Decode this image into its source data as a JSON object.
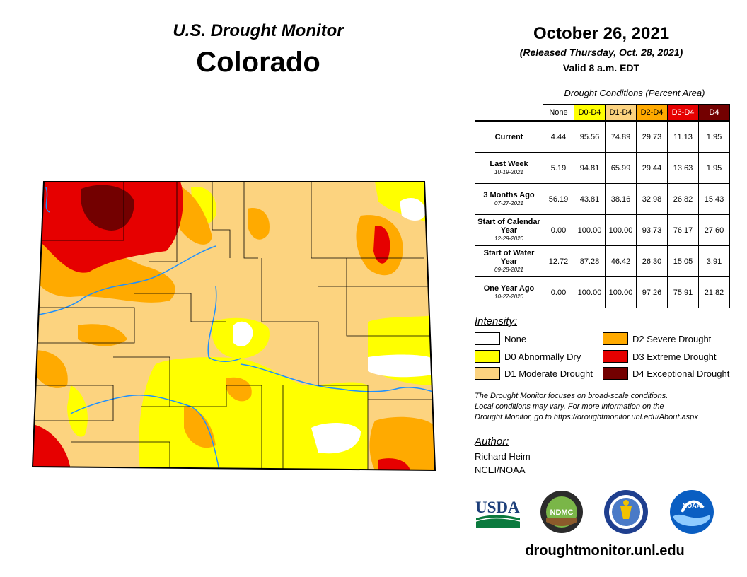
{
  "header": {
    "title": "U.S. Drought Monitor",
    "state": "Colorado",
    "date": "October 26, 2021",
    "released": "(Released Thursday, Oct. 28, 2021)",
    "valid": "Valid 8 a.m. EDT"
  },
  "conditions": {
    "caption": "Drought Conditions (Percent Area)",
    "columns": [
      {
        "label": "None",
        "color": "#ffffff",
        "text": "#000000"
      },
      {
        "label": "D0-D4",
        "color": "#ffff00",
        "text": "#000000"
      },
      {
        "label": "D1-D4",
        "color": "#fcd37f",
        "text": "#000000"
      },
      {
        "label": "D2-D4",
        "color": "#ffaa00",
        "text": "#000000"
      },
      {
        "label": "D3-D4",
        "color": "#e60000",
        "text": "#ffffff"
      },
      {
        "label": "D4",
        "color": "#730000",
        "text": "#ffffff"
      }
    ],
    "rows": [
      {
        "label": "Current",
        "date": "",
        "values": [
          "4.44",
          "95.56",
          "74.89",
          "29.73",
          "11.13",
          "1.95"
        ]
      },
      {
        "label": "Last Week",
        "date": "10-19-2021",
        "values": [
          "5.19",
          "94.81",
          "65.99",
          "29.44",
          "13.63",
          "1.95"
        ]
      },
      {
        "label": "3 Months Ago",
        "date": "07-27-2021",
        "values": [
          "56.19",
          "43.81",
          "38.16",
          "32.98",
          "26.82",
          "15.43"
        ]
      },
      {
        "label": "Start of Calendar Year",
        "date": "12-29-2020",
        "values": [
          "0.00",
          "100.00",
          "100.00",
          "93.73",
          "76.17",
          "27.60"
        ]
      },
      {
        "label": "Start of Water Year",
        "date": "09-28-2021",
        "values": [
          "12.72",
          "87.28",
          "46.42",
          "26.30",
          "15.05",
          "3.91"
        ]
      },
      {
        "label": "One Year Ago",
        "date": "10-27-2020",
        "values": [
          "0.00",
          "100.00",
          "100.00",
          "97.26",
          "75.91",
          "21.82"
        ]
      }
    ]
  },
  "intensity": {
    "heading": "Intensity:",
    "items": [
      {
        "label": "None",
        "color": "#ffffff"
      },
      {
        "label": "D0 Abnormally Dry",
        "color": "#ffff00"
      },
      {
        "label": "D1 Moderate Drought",
        "color": "#fcd37f"
      },
      {
        "label": "D2 Severe Drought",
        "color": "#ffaa00"
      },
      {
        "label": "D3 Extreme Drought",
        "color": "#e60000"
      },
      {
        "label": "D4 Exceptional Drought",
        "color": "#730000"
      }
    ]
  },
  "note": {
    "line1": "The Drought Monitor focuses on broad-scale conditions.",
    "line2": "Local conditions may vary. For more information on the",
    "line3": "Drought Monitor, go to https://droughtmonitor.unl.edu/About.aspx"
  },
  "author": {
    "heading": "Author:",
    "name": "Richard Heim",
    "org": "NCEI/NOAA"
  },
  "logos": {
    "usda": "USDA",
    "ndmc": "NDMC",
    "noaa": "NOAA"
  },
  "footer": {
    "url": "droughtmonitor.unl.edu"
  },
  "colors": {
    "none": "#ffffff",
    "d0": "#ffff00",
    "d1": "#fcd37f",
    "d2": "#ffaa00",
    "d3": "#e60000",
    "d4": "#730000",
    "river": "#1e90ff"
  }
}
